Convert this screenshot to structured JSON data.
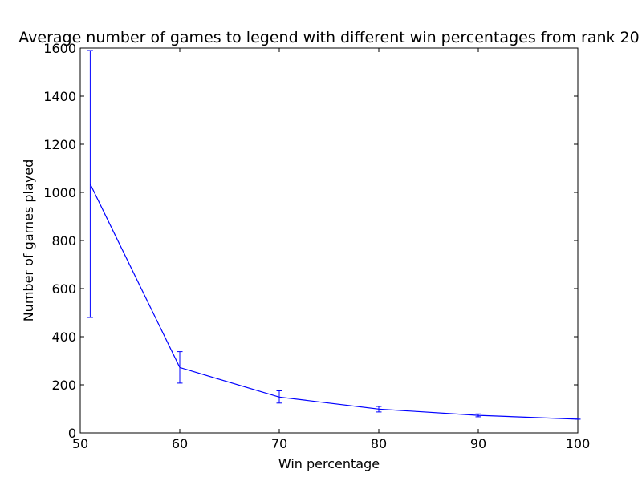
{
  "chart_data": {
    "type": "line",
    "title": "Average number of games to legend with different win percentages from rank 20",
    "xlabel": "Win percentage",
    "ylabel": "Number of games played",
    "xlim": [
      50,
      100
    ],
    "ylim": [
      0,
      1600
    ],
    "x_ticks": [
      "50",
      "60",
      "70",
      "80",
      "90",
      "100"
    ],
    "y_ticks": [
      "0",
      "200",
      "400",
      "600",
      "800",
      "1000",
      "1200",
      "1400",
      "1600"
    ],
    "grid": false,
    "series": [
      {
        "color": "#0000ff",
        "x": [
          51,
          60,
          70,
          80,
          90,
          100
        ],
        "values": [
          1035,
          272,
          149,
          99,
          73,
          57
        ],
        "error_low": [
          480,
          207,
          124,
          87,
          67,
          57
        ],
        "error_high": [
          1590,
          338,
          175,
          110,
          79,
          57
        ]
      }
    ]
  }
}
